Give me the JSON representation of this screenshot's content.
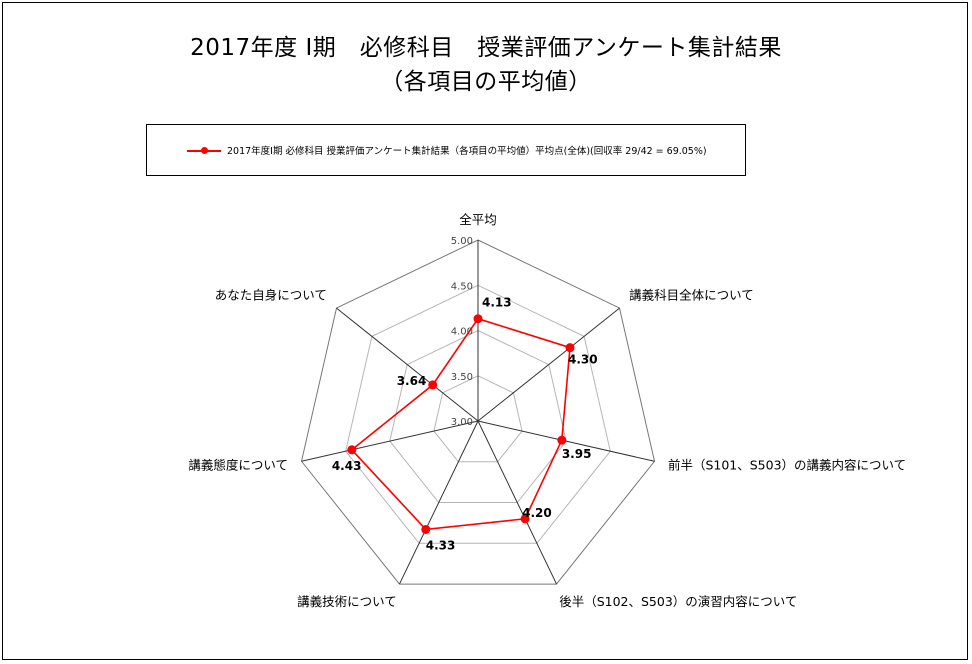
{
  "chart_data": {
    "type": "radar",
    "title": "2017年度 I期　必修科目　授業評価アンケート集計結果",
    "subtitle": "（各項目の平均値）",
    "legend_position": "top",
    "grid": true,
    "rlim": [
      3.0,
      5.0
    ],
    "tick_labels": [
      "3.00",
      "3.50",
      "4.00",
      "4.50",
      "5.00"
    ],
    "categories": [
      "全平均",
      "講義科目全体について",
      "前半（S101、S503）の講義内容について",
      "後半（S102、S503）の演習内容について",
      "講義技術について",
      "講義態度について",
      "あなた自身について"
    ],
    "series": [
      {
        "name": "2017年度I期 必修科目 授業評価アンケート集計結果（各項目の平均値）平均点(全体)(回収率 29/42 = 69.05%)",
        "values": [
          4.13,
          4.3,
          3.95,
          4.2,
          4.33,
          4.43,
          3.64
        ],
        "labels": [
          "4.13",
          "4.30",
          "3.95",
          "4.20",
          "4.33",
          "4.43",
          "3.64"
        ],
        "color": "#ff0000"
      }
    ]
  }
}
